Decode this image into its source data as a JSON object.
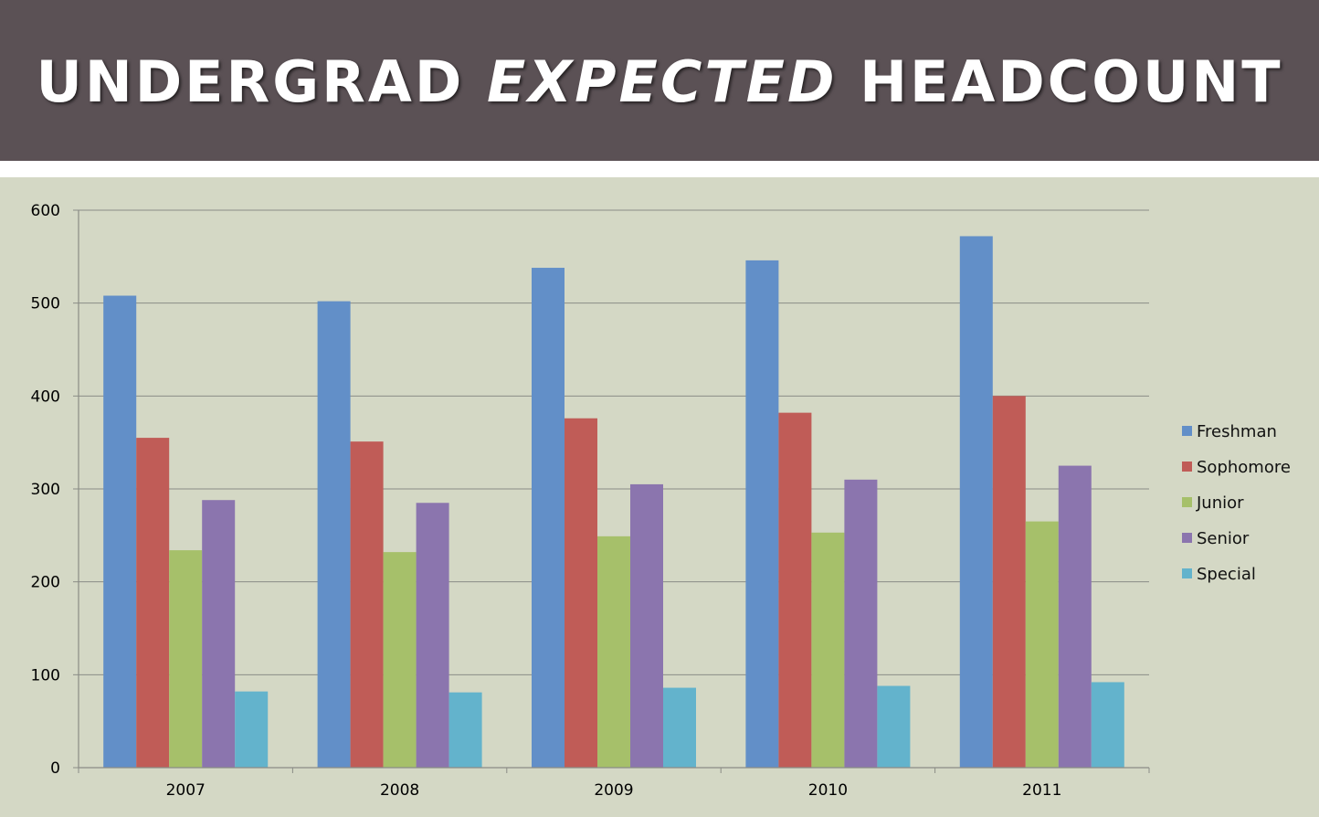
{
  "title": {
    "part1": "UNDERGRAD ",
    "emphasis": "EXPECTED",
    "part2": " HEADCOUNT"
  },
  "colors": {
    "header_bg": "#5b5155",
    "chart_bg": "#d4d8c5"
  },
  "chart_data": {
    "type": "bar",
    "categories": [
      "2007",
      "2008",
      "2009",
      "2010",
      "2011"
    ],
    "series": [
      {
        "name": "Freshman",
        "color": "#628fc8",
        "values": [
          508,
          502,
          538,
          546,
          572
        ]
      },
      {
        "name": "Sophomore",
        "color": "#c05c57",
        "values": [
          355,
          351,
          376,
          382,
          400
        ]
      },
      {
        "name": "Junior",
        "color": "#a6c06a",
        "values": [
          234,
          232,
          249,
          253,
          265
        ]
      },
      {
        "name": "Senior",
        "color": "#8b75ae",
        "values": [
          288,
          285,
          305,
          310,
          325
        ]
      },
      {
        "name": "Special",
        "color": "#63b3cc",
        "values": [
          82,
          81,
          86,
          88,
          92
        ]
      }
    ],
    "ylim": [
      0,
      600
    ],
    "yticks": [
      "0",
      "100",
      "200",
      "300",
      "400",
      "500",
      "600"
    ],
    "grid": true,
    "legend": "right",
    "xlabel": "",
    "ylabel": ""
  }
}
